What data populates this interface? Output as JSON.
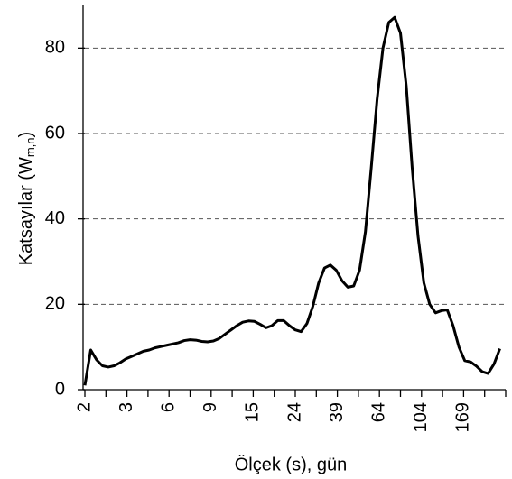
{
  "chart_data": {
    "type": "line",
    "xlabel": "Ölçek (s), gün",
    "ylabel": {
      "text": "Katsayılar (W",
      "sub": "m,n",
      "end": ")"
    },
    "series": [
      {
        "color": "#000000",
        "values": [
          1,
          9.3,
          7,
          5.6,
          5.3,
          5.6,
          6.3,
          7.2,
          7.8,
          8.4,
          9,
          9.3,
          9.8,
          10.1,
          10.4,
          10.7,
          11,
          11.5,
          11.7,
          11.6,
          11.3,
          11.2,
          11.4,
          12,
          13,
          14,
          15,
          15.8,
          16.1,
          16,
          15.3,
          14.5,
          15,
          16.2,
          16.2,
          15,
          14,
          13.6,
          15.5,
          19.5,
          25,
          28.5,
          29.2,
          28,
          25.5,
          24,
          24.3,
          28,
          37,
          52,
          68,
          80,
          86,
          87.2,
          83.5,
          71,
          52,
          36,
          25,
          20,
          18,
          18.5,
          18.7,
          15,
          10,
          6.8,
          6.5,
          5.5,
          4.2,
          3.8,
          6,
          9.6
        ]
      }
    ],
    "xlim": [
      0,
      72
    ],
    "xticks": [
      {
        "value": 0,
        "label": "2"
      },
      {
        "value": 7.2,
        "label": "3"
      },
      {
        "value": 14.4,
        "label": "6"
      },
      {
        "value": 21.6,
        "label": "9"
      },
      {
        "value": 28.8,
        "label": "15"
      },
      {
        "value": 36,
        "label": "24"
      },
      {
        "value": 43.2,
        "label": "39"
      },
      {
        "value": 50.4,
        "label": "64"
      },
      {
        "value": 57.6,
        "label": "104"
      },
      {
        "value": 64.8,
        "label": "169"
      }
    ],
    "xminorticks": [
      3.6,
      10.8,
      18,
      25.2,
      32.4,
      39.6,
      46.8,
      54,
      61.2,
      68.4,
      72
    ],
    "ylim": [
      0,
      90
    ],
    "yticks": [
      0,
      20,
      40,
      60,
      80
    ],
    "grid": true
  }
}
